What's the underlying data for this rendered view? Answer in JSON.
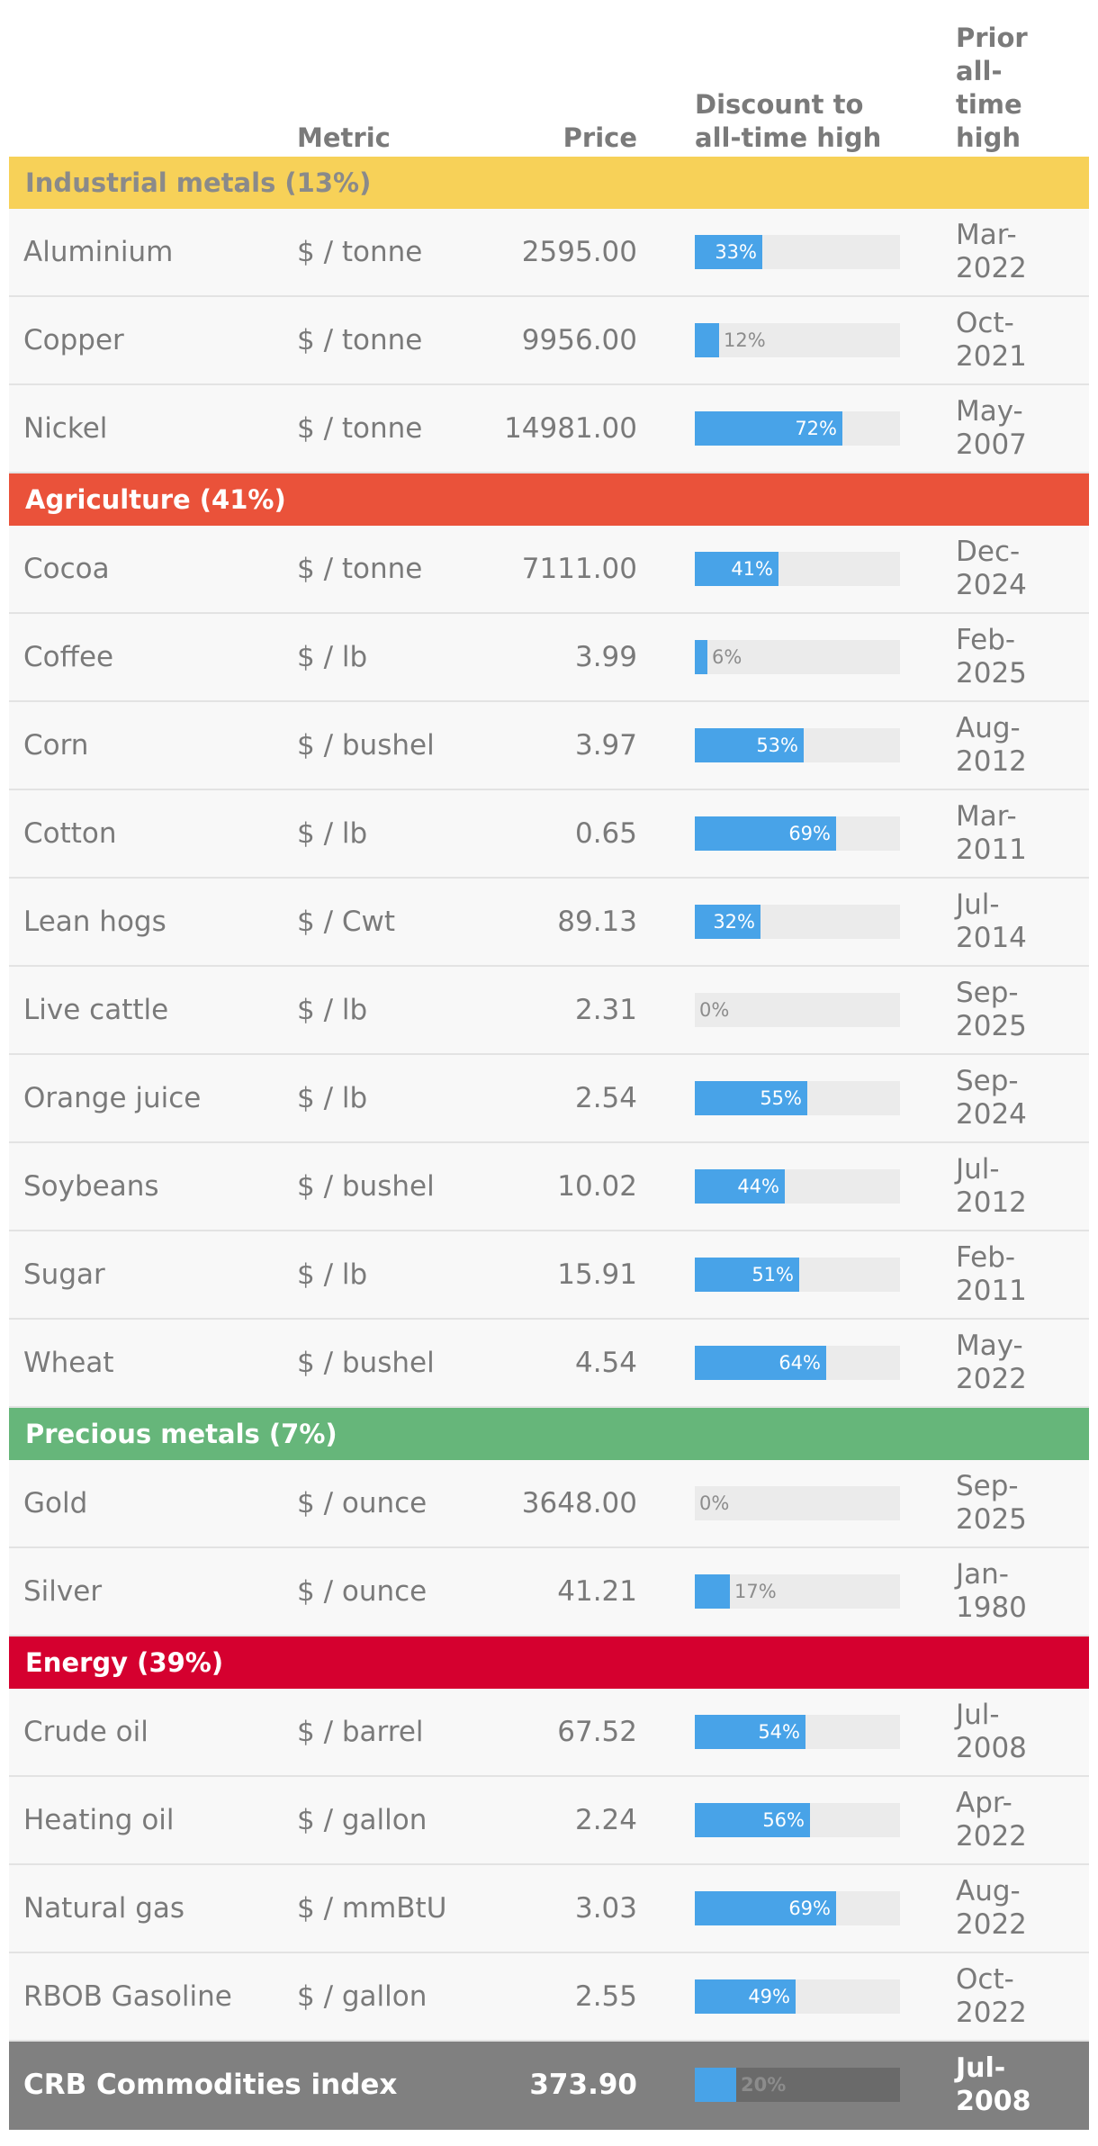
{
  "header": {
    "metric": "Metric",
    "price": "Price",
    "discount_line1": "Discount to",
    "discount_line2": "all-time high",
    "prior_line1": "Prior all-",
    "prior_line2": "time",
    "prior_line3": "high"
  },
  "colors": {
    "industrial": "#f7d158",
    "agriculture": "#ea523a",
    "precious": "#66b67a",
    "energy": "#d5002f",
    "bar": "#48a3e8"
  },
  "chart_data": {
    "type": "table",
    "columns": [
      "",
      "Metric",
      "Price",
      "Discount to all-time high",
      "Prior all-time high"
    ],
    "sections": [
      {
        "title": "Industrial metals (13%)",
        "color": "#f7d158",
        "text_color": "#8a8a8a",
        "rows": [
          {
            "name": "Aluminium",
            "metric": "$ / tonne",
            "price": "2595.00",
            "discount": 33,
            "discount_label": "33%",
            "date_line1": "Mar-",
            "date_line2": "2022"
          },
          {
            "name": "Copper",
            "metric": "$ / tonne",
            "price": "9956.00",
            "discount": 12,
            "discount_label": "12%",
            "date_line1": "Oct-",
            "date_line2": "2021"
          },
          {
            "name": "Nickel",
            "metric": "$ / tonne",
            "price": "14981.00",
            "discount": 72,
            "discount_label": "72%",
            "date_line1": "May-",
            "date_line2": "2007"
          }
        ]
      },
      {
        "title": "Agriculture (41%)",
        "color": "#ea523a",
        "text_color": "#ffffff",
        "rows": [
          {
            "name": "Cocoa",
            "metric": "$ / tonne",
            "price": "7111.00",
            "discount": 41,
            "discount_label": "41%",
            "date_line1": "Dec-",
            "date_line2": "2024"
          },
          {
            "name": "Coffee",
            "metric": "$ / lb",
            "price": "3.99",
            "discount": 6,
            "discount_label": "6%",
            "date_line1": "Feb-",
            "date_line2": "2025"
          },
          {
            "name": "Corn",
            "metric": "$ / bushel",
            "price": "3.97",
            "discount": 53,
            "discount_label": "53%",
            "date_line1": "Aug-",
            "date_line2": "2012"
          },
          {
            "name": "Cotton",
            "metric": "$ / lb",
            "price": "0.65",
            "discount": 69,
            "discount_label": "69%",
            "date_line1": "Mar-",
            "date_line2": "2011"
          },
          {
            "name": "Lean hogs",
            "metric": "$ / Cwt",
            "price": "89.13",
            "discount": 32,
            "discount_label": "32%",
            "date_line1": "Jul-",
            "date_line2": "2014"
          },
          {
            "name": "Live cattle",
            "metric": "$ / lb",
            "price": "2.31",
            "discount": 0,
            "discount_label": "0%",
            "date_line1": "Sep-",
            "date_line2": "2025"
          },
          {
            "name": "Orange juice",
            "metric": "$ / lb",
            "price": "2.54",
            "discount": 55,
            "discount_label": "55%",
            "date_line1": "Sep-",
            "date_line2": "2024"
          },
          {
            "name": "Soybeans",
            "metric": "$ / bushel",
            "price": "10.02",
            "discount": 44,
            "discount_label": "44%",
            "date_line1": "Jul-",
            "date_line2": "2012"
          },
          {
            "name": "Sugar",
            "metric": "$ / lb",
            "price": "15.91",
            "discount": 51,
            "discount_label": "51%",
            "date_line1": "Feb-",
            "date_line2": "2011"
          },
          {
            "name": "Wheat",
            "metric": "$ / bushel",
            "price": "4.54",
            "discount": 64,
            "discount_label": "64%",
            "date_line1": "May-",
            "date_line2": "2022"
          }
        ]
      },
      {
        "title": "Precious metals (7%)",
        "color": "#66b67a",
        "text_color": "#ffffff",
        "rows": [
          {
            "name": "Gold",
            "metric": "$ / ounce",
            "price": "3648.00",
            "discount": 0,
            "discount_label": "0%",
            "date_line1": "Sep-",
            "date_line2": "2025"
          },
          {
            "name": "Silver",
            "metric": "$ / ounce",
            "price": "41.21",
            "discount": 17,
            "discount_label": "17%",
            "date_line1": "Jan-",
            "date_line2": "1980"
          }
        ]
      },
      {
        "title": "Energy (39%)",
        "color": "#d5002f",
        "text_color": "#ffffff",
        "rows": [
          {
            "name": "Crude oil",
            "metric": "$ / barrel",
            "price": "67.52",
            "discount": 54,
            "discount_label": "54%",
            "date_line1": "Jul-",
            "date_line2": "2008"
          },
          {
            "name": "Heating oil",
            "metric": "$ / gallon",
            "price": "2.24",
            "discount": 56,
            "discount_label": "56%",
            "date_line1": "Apr-",
            "date_line2": "2022"
          },
          {
            "name": "Natural gas",
            "metric": "$ / mmBtU",
            "price": "3.03",
            "discount": 69,
            "discount_label": "69%",
            "date_line1": "Aug-",
            "date_line2": "2022"
          },
          {
            "name": "RBOB Gasoline",
            "metric": "$ / gallon",
            "price": "2.55",
            "discount": 49,
            "discount_label": "49%",
            "date_line1": "Oct-",
            "date_line2": "2022"
          }
        ]
      }
    ],
    "total": {
      "name": "CRB Commodities index",
      "metric": "",
      "price": "373.90",
      "discount": 20,
      "discount_label": "20%",
      "date_line1": "Jul-",
      "date_line2": "2008"
    },
    "discount_range": [
      0,
      100
    ]
  }
}
